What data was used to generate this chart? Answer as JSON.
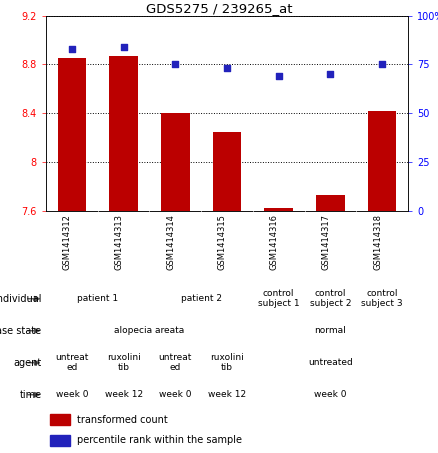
{
  "title": "GDS5275 / 239265_at",
  "samples": [
    "GSM1414312",
    "GSM1414313",
    "GSM1414314",
    "GSM1414315",
    "GSM1414316",
    "GSM1414317",
    "GSM1414318"
  ],
  "bar_values": [
    8.85,
    8.87,
    8.4,
    8.25,
    7.62,
    7.73,
    8.42
  ],
  "dot_values": [
    83,
    84,
    75,
    73,
    69,
    70,
    75
  ],
  "ylim_left": [
    7.6,
    9.2
  ],
  "ylim_right": [
    0,
    100
  ],
  "yticks_left": [
    7.6,
    8.0,
    8.4,
    8.8,
    9.2
  ],
  "yticks_right": [
    0,
    25,
    50,
    75,
    100
  ],
  "ytick_labels_left": [
    "7.6",
    "8",
    "8.4",
    "8.8",
    "9.2"
  ],
  "ytick_labels_right": [
    "0",
    "25",
    "50",
    "75",
    "100%"
  ],
  "bar_color": "#bb0000",
  "dot_color": "#2222bb",
  "annotation_rows": [
    {
      "label": "individual",
      "cells": [
        {
          "text": "patient 1",
          "span": 2,
          "color": "#cceecc"
        },
        {
          "text": "patient 2",
          "span": 2,
          "color": "#bbeecc"
        },
        {
          "text": "control\nsubject 1",
          "span": 1,
          "color": "#aaddaa"
        },
        {
          "text": "control\nsubject 2",
          "span": 1,
          "color": "#aaddaa"
        },
        {
          "text": "control\nsubject 3",
          "span": 1,
          "color": "#aaddaa"
        }
      ]
    },
    {
      "label": "disease state",
      "cells": [
        {
          "text": "alopecia areata",
          "span": 4,
          "color": "#7799cc"
        },
        {
          "text": "normal",
          "span": 3,
          "color": "#aabbee"
        }
      ]
    },
    {
      "label": "agent",
      "cells": [
        {
          "text": "untreat\ned",
          "span": 1,
          "color": "#ffccff"
        },
        {
          "text": "ruxolini\ntib",
          "span": 1,
          "color": "#ee99ee"
        },
        {
          "text": "untreat\ned",
          "span": 1,
          "color": "#ffccff"
        },
        {
          "text": "ruxolini\ntib",
          "span": 1,
          "color": "#ee99ee"
        },
        {
          "text": "untreated",
          "span": 3,
          "color": "#ffccff"
        }
      ]
    },
    {
      "label": "time",
      "cells": [
        {
          "text": "week 0",
          "span": 1,
          "color": "#f5deb3"
        },
        {
          "text": "week 12",
          "span": 1,
          "color": "#deb887"
        },
        {
          "text": "week 0",
          "span": 1,
          "color": "#f5deb3"
        },
        {
          "text": "week 12",
          "span": 1,
          "color": "#deb887"
        },
        {
          "text": "week 0",
          "span": 3,
          "color": "#f5deb3"
        }
      ]
    }
  ],
  "legend_items": [
    {
      "color": "#bb0000",
      "label": "transformed count"
    },
    {
      "color": "#2222bb",
      "label": "percentile rank within the sample"
    }
  ],
  "xtick_bg": "#cccccc",
  "cell_border": "#888888"
}
